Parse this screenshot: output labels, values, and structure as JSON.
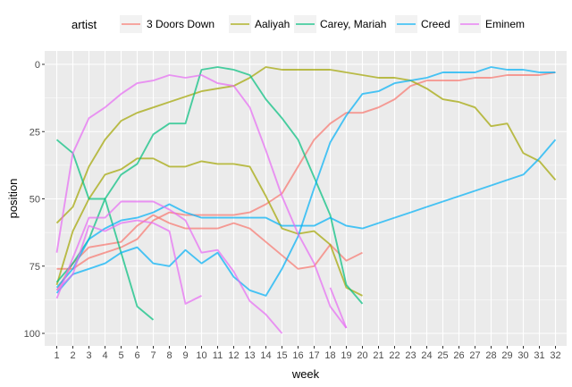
{
  "chart_data": {
    "type": "line",
    "xlabel": "week",
    "ylabel": "position",
    "xlim": [
      1,
      32
    ],
    "ylim": [
      0,
      100
    ],
    "y_reversed": true,
    "x_ticks": [
      1,
      2,
      3,
      4,
      5,
      6,
      7,
      8,
      9,
      10,
      11,
      12,
      13,
      14,
      15,
      16,
      17,
      18,
      19,
      20,
      21,
      22,
      23,
      24,
      25,
      26,
      27,
      28,
      29,
      30,
      31,
      32
    ],
    "y_ticks": [
      0,
      25,
      50,
      75,
      100
    ],
    "grid": true,
    "legend": {
      "title": "artist",
      "placement": "top",
      "entries": [
        "3 Doors Down",
        "Aaliyah",
        "Carey, Mariah",
        "Creed",
        "Eminem"
      ]
    },
    "series": [
      {
        "name": "3 Doors Down",
        "color": "#F8766D",
        "x": [
          1,
          2,
          3,
          4,
          5,
          6,
          7,
          8,
          9,
          10,
          11,
          12,
          13,
          14,
          15,
          16,
          17,
          18,
          19,
          20,
          21,
          22,
          23,
          24,
          25,
          26,
          27,
          28,
          29,
          30,
          31,
          32
        ],
        "values": [
          76,
          76,
          74,
          72,
          69,
          67,
          65,
          61,
          59,
          58,
          57,
          57,
          55,
          53,
          52,
          51,
          51,
          49,
          49,
          49,
          49,
          48,
          46,
          46,
          46,
          44,
          44,
          43,
          43,
          43,
          43,
          43
        ]
      },
      {
        "name": "3 Doors Down",
        "color": "#F8766D",
        "x": [
          1,
          2,
          3,
          4,
          5,
          6,
          7,
          8,
          9,
          10,
          11,
          12,
          13,
          14,
          15,
          16,
          17,
          18,
          19,
          20,
          21,
          22,
          23,
          24,
          25,
          26,
          27,
          28,
          29,
          30,
          31,
          32
        ],
        "values": [
          null,
          null,
          null,
          null,
          null,
          null,
          null,
          null,
          null,
          null,
          null,
          null,
          null,
          null,
          null,
          null,
          null,
          null,
          null,
          null,
          null,
          null,
          null,
          null,
          null,
          null,
          null,
          null,
          null,
          null,
          null,
          null
        ]
      },
      {
        "name": "3 Doors Down",
        "color": "#F8766D",
        "x": [
          1,
          2,
          3,
          4,
          5,
          6,
          7,
          8,
          9,
          10,
          11,
          12,
          13,
          14,
          15,
          16,
          17,
          18,
          19,
          20,
          21,
          22,
          23,
          24,
          25,
          26,
          27,
          28,
          29,
          30,
          31,
          32
        ],
        "values": [
          null,
          null,
          null,
          null,
          null,
          null,
          null,
          null,
          null,
          null,
          null,
          null,
          null,
          null,
          null,
          null,
          null,
          null,
          null,
          null,
          null,
          null,
          null,
          null,
          null,
          null,
          null,
          null,
          null,
          null,
          null,
          null
        ]
      }
    ],
    "lines": [
      {
        "artist": "3 Doors Down",
        "color": "#F8766D",
        "x": [
          1,
          2,
          3,
          4,
          5,
          6,
          7,
          8,
          9,
          10,
          11,
          12,
          13,
          14,
          15,
          16,
          17,
          18,
          19,
          20,
          21,
          22,
          23,
          24,
          25,
          26,
          27,
          28,
          29,
          30,
          31,
          32
        ],
        "y": [
          76,
          76,
          72,
          70,
          68,
          65,
          58,
          55,
          56,
          56,
          56,
          56,
          55,
          52,
          48,
          38,
          28,
          22,
          18,
          18,
          16,
          13,
          8,
          6,
          6,
          6,
          5,
          5,
          4,
          4,
          4,
          3
        ]
      },
      {
        "artist": "3 Doors Down",
        "color": "#F8766D",
        "x": [
          1,
          2,
          3,
          4,
          5,
          6,
          7,
          8,
          9,
          10,
          11,
          12,
          13,
          14,
          15,
          16,
          17,
          18,
          19,
          20
        ],
        "y": [
          84,
          74,
          68,
          67,
          66,
          60,
          56,
          59,
          61,
          61,
          61,
          59,
          61,
          66,
          71,
          76,
          75,
          67,
          73,
          70
        ]
      },
      {
        "artist": "Aaliyah",
        "color": "#A3A500",
        "x": [
          1,
          2,
          3,
          4,
          5,
          6,
          7,
          8,
          9,
          10,
          11,
          12,
          13,
          14,
          15,
          16,
          17,
          18,
          19,
          20,
          21,
          22,
          23,
          24,
          25,
          26,
          27,
          28,
          29,
          30,
          31,
          32
        ],
        "y": [
          59,
          53,
          38,
          28,
          21,
          18,
          16,
          14,
          12,
          10,
          9,
          8,
          5,
          1,
          2,
          2,
          2,
          2,
          3,
          4,
          5,
          5,
          6,
          9,
          13,
          14,
          16,
          23,
          22,
          33,
          36,
          43
        ]
      },
      {
        "artist": "Aaliyah",
        "color": "#A3A500",
        "x": [
          1,
          2,
          3,
          4,
          5,
          6,
          7,
          8,
          9,
          10,
          11,
          12,
          13,
          14,
          15,
          16,
          17,
          18,
          19,
          20
        ],
        "y": [
          82,
          62,
          50,
          41,
          39,
          35,
          35,
          38,
          38,
          36,
          37,
          37,
          38,
          49,
          61,
          63,
          62,
          67,
          83,
          86
        ]
      },
      {
        "artist": "Carey, Mariah",
        "color": "#00BF7D",
        "x": [
          1,
          2,
          3,
          4,
          5,
          6,
          7,
          8,
          9,
          10,
          11,
          12,
          13,
          14,
          15,
          16,
          17,
          18,
          19,
          20
        ],
        "y": [
          28,
          33,
          50,
          50,
          41,
          37,
          26,
          22,
          22,
          2,
          1,
          2,
          4,
          13,
          20,
          28,
          42,
          56,
          82,
          89
        ]
      },
      {
        "artist": "Carey, Mariah",
        "color": "#00BF7D",
        "x": [
          1,
          2,
          3,
          4,
          5,
          6,
          7
        ],
        "y": [
          81,
          74,
          65,
          50,
          70,
          90,
          95
        ]
      },
      {
        "artist": "Creed",
        "color": "#00B0F6",
        "x": [
          1,
          2,
          3,
          4,
          5,
          6,
          7,
          8,
          9,
          10,
          11,
          12,
          13,
          14,
          15,
          16,
          17,
          18,
          19,
          20,
          21,
          22,
          23,
          24,
          25,
          26,
          27,
          28,
          29,
          30,
          31,
          32
        ],
        "y": [
          83,
          76,
          65,
          61,
          58,
          57,
          55,
          52,
          55,
          57,
          57,
          57,
          57,
          57,
          60,
          60,
          60,
          57,
          60,
          61,
          59,
          57,
          55,
          53,
          51,
          49,
          47,
          45,
          43,
          41,
          35,
          28
        ]
      },
      {
        "artist": "Creed",
        "color": "#00B0F6",
        "x": [
          1,
          2,
          3,
          4,
          5,
          6,
          7,
          8,
          9,
          10,
          11,
          12,
          13,
          14,
          15,
          16,
          17,
          18,
          19,
          20,
          21,
          22,
          23,
          24,
          25,
          26,
          27,
          28,
          29,
          30,
          31,
          32
        ],
        "y": [
          85,
          78,
          76,
          74,
          70,
          68,
          74,
          75,
          69,
          74,
          70,
          79,
          84,
          86,
          76,
          64,
          46,
          29,
          19,
          11,
          10,
          7,
          6,
          5,
          3,
          3,
          3,
          1,
          2,
          2,
          3,
          3
        ]
      },
      {
        "artist": "Eminem",
        "color": "#E76BF3",
        "x": [
          1,
          2,
          3,
          4,
          5,
          6,
          7,
          8,
          9,
          10,
          11,
          12,
          13,
          14,
          15,
          16,
          17,
          18,
          19,
          20,
          21
        ],
        "y": [
          70,
          33,
          20,
          16,
          11,
          7,
          6,
          4,
          5,
          4,
          7,
          8,
          16,
          32,
          49,
          63,
          74,
          90,
          98,
          null,
          null
        ]
      },
      {
        "artist": "Eminem",
        "color": "#E76BF3",
        "x": [
          1,
          2,
          3,
          4,
          5,
          6,
          7,
          8,
          9,
          10,
          11,
          12,
          13,
          14,
          15,
          16,
          17,
          18,
          19
        ],
        "y": [
          87,
          72,
          57,
          57,
          51,
          51,
          51,
          54,
          58,
          70,
          69,
          77,
          88,
          93,
          100,
          null,
          null,
          null,
          null
        ]
      },
      {
        "artist": "Eminem",
        "color": "#E76BF3",
        "x": [
          1,
          2,
          3,
          4,
          5,
          6,
          7,
          8,
          9,
          10,
          11,
          12,
          13,
          14,
          15,
          16,
          17,
          18,
          19
        ],
        "y": [
          84,
          78,
          60,
          62,
          59,
          58,
          59,
          62,
          89,
          86,
          null,
          null,
          null,
          null,
          null,
          null,
          null,
          83,
          98
        ]
      }
    ]
  }
}
